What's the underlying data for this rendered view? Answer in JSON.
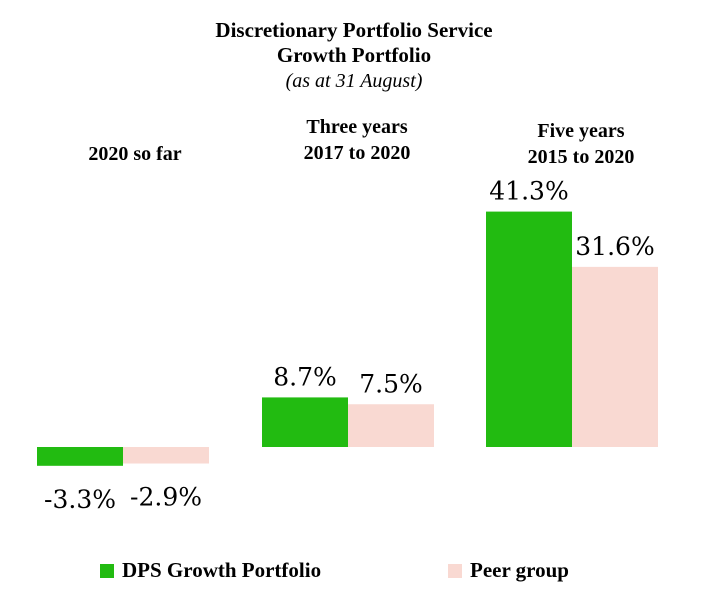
{
  "header": {
    "title_line1": "Discretionary Portfolio Service",
    "title_line2": "Growth Portfolio",
    "subtitle": "(as at 31 August)"
  },
  "groups": [
    {
      "line1": "2020 so far",
      "line2": ""
    },
    {
      "line1": "Three years",
      "line2": "2017 to 2020"
    },
    {
      "line1": "Five years",
      "line2": "2015 to 2020"
    }
  ],
  "legend": {
    "dps": "DPS Growth Portfolio",
    "peer": "Peer group"
  },
  "colors": {
    "dps": "#22bb11",
    "peer": "#f9d9d2"
  },
  "chart_data": {
    "type": "bar",
    "title": "Discretionary Portfolio Service Growth Portfolio",
    "subtitle": "(as at 31 August)",
    "categories": [
      "2020 so far",
      "Three years 2017 to 2020",
      "Five years 2015 to 2020"
    ],
    "series": [
      {
        "name": "DPS Growth Portfolio",
        "values": [
          -3.3,
          8.7,
          41.3
        ],
        "labels": [
          "-3.3%",
          "8.7%",
          "41.3%"
        ]
      },
      {
        "name": "Peer group",
        "values": [
          -2.9,
          7.5,
          31.6
        ],
        "labels": [
          "-2.9%",
          "7.5%",
          "31.6%"
        ]
      }
    ],
    "xlabel": "",
    "ylabel": "",
    "grid": false,
    "legend_position": "bottom"
  }
}
